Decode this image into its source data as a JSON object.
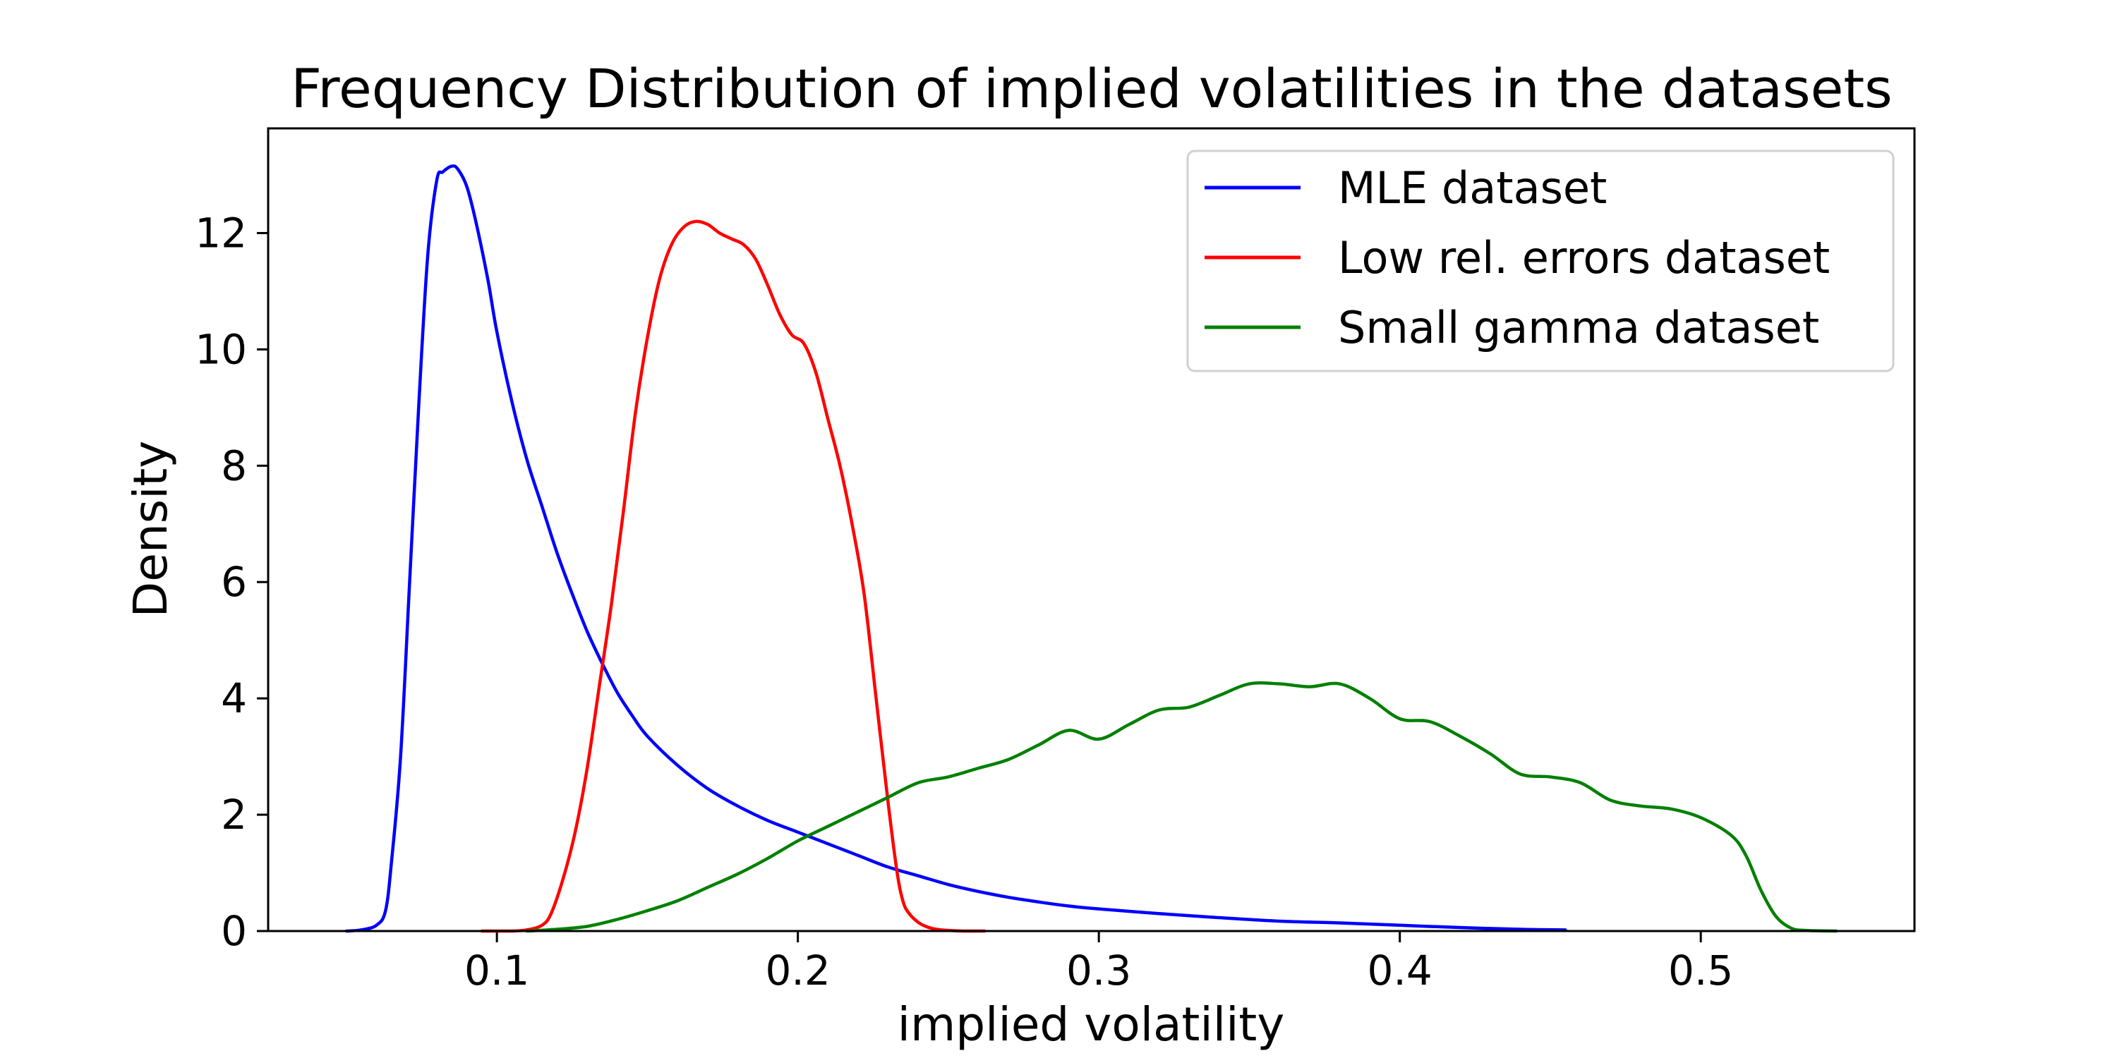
{
  "chart_data": {
    "type": "line",
    "title": "Frequency Distribution of implied volatilities in the datasets",
    "xlabel": "implied volatility",
    "ylabel": "Density",
    "xlim": [
      0.024,
      0.571
    ],
    "ylim": [
      0,
      13.8
    ],
    "xticks": [
      {
        "value": 0.1,
        "label": "0.1"
      },
      {
        "value": 0.2,
        "label": "0.2"
      },
      {
        "value": 0.3,
        "label": "0.3"
      },
      {
        "value": 0.4,
        "label": "0.4"
      },
      {
        "value": 0.5,
        "label": "0.5"
      }
    ],
    "yticks": [
      {
        "value": 0,
        "label": "0"
      },
      {
        "value": 2,
        "label": "2"
      },
      {
        "value": 4,
        "label": "4"
      },
      {
        "value": 6,
        "label": "6"
      },
      {
        "value": 8,
        "label": "8"
      },
      {
        "value": 10,
        "label": "10"
      },
      {
        "value": 12,
        "label": "12"
      }
    ],
    "grid": false,
    "legend_position": "top-right",
    "series": [
      {
        "name": "MLE dataset",
        "color": "#0000ff",
        "x": [
          0.05,
          0.055,
          0.06,
          0.063,
          0.065,
          0.068,
          0.071,
          0.074,
          0.077,
          0.08,
          0.082,
          0.085,
          0.087,
          0.09,
          0.093,
          0.097,
          0.1,
          0.105,
          0.11,
          0.115,
          0.12,
          0.125,
          0.13,
          0.135,
          0.14,
          0.145,
          0.15,
          0.16,
          0.17,
          0.18,
          0.19,
          0.2,
          0.21,
          0.22,
          0.23,
          0.24,
          0.25,
          0.26,
          0.27,
          0.28,
          0.29,
          0.3,
          0.32,
          0.34,
          0.36,
          0.38,
          0.4,
          0.42,
          0.44,
          0.455
        ],
        "y": [
          0.0,
          0.02,
          0.1,
          0.35,
          1.2,
          3.0,
          6.0,
          9.0,
          11.6,
          12.9,
          13.05,
          13.15,
          13.1,
          12.8,
          12.2,
          11.2,
          10.3,
          9.1,
          8.1,
          7.3,
          6.5,
          5.8,
          5.15,
          4.6,
          4.1,
          3.7,
          3.35,
          2.85,
          2.45,
          2.15,
          1.9,
          1.7,
          1.5,
          1.3,
          1.1,
          0.95,
          0.8,
          0.68,
          0.58,
          0.5,
          0.43,
          0.38,
          0.3,
          0.23,
          0.17,
          0.14,
          0.1,
          0.06,
          0.03,
          0.02
        ]
      },
      {
        "name": "Low rel. errors dataset",
        "color": "#ff0000",
        "x": [
          0.095,
          0.105,
          0.11,
          0.115,
          0.118,
          0.122,
          0.126,
          0.13,
          0.134,
          0.138,
          0.142,
          0.146,
          0.15,
          0.154,
          0.158,
          0.162,
          0.166,
          0.17,
          0.174,
          0.178,
          0.182,
          0.186,
          0.19,
          0.194,
          0.198,
          0.202,
          0.206,
          0.21,
          0.214,
          0.218,
          0.222,
          0.226,
          0.23,
          0.233,
          0.235,
          0.237,
          0.24,
          0.243,
          0.246,
          0.25,
          0.255,
          0.262
        ],
        "y": [
          0.0,
          0.0,
          0.02,
          0.1,
          0.3,
          0.9,
          1.7,
          2.8,
          4.2,
          5.6,
          7.2,
          8.9,
          10.2,
          11.2,
          11.8,
          12.1,
          12.2,
          12.15,
          12.0,
          11.9,
          11.8,
          11.55,
          11.1,
          10.6,
          10.25,
          10.1,
          9.6,
          8.8,
          8.0,
          7.0,
          5.8,
          4.0,
          2.2,
          1.0,
          0.5,
          0.3,
          0.15,
          0.07,
          0.03,
          0.01,
          0.0,
          0.0
        ],
        "x_fix": []
      },
      {
        "name": "Small gamma dataset",
        "color": "#008000",
        "x": [
          0.11,
          0.12,
          0.13,
          0.14,
          0.15,
          0.16,
          0.17,
          0.18,
          0.19,
          0.2,
          0.21,
          0.22,
          0.23,
          0.24,
          0.25,
          0.26,
          0.27,
          0.28,
          0.29,
          0.3,
          0.31,
          0.32,
          0.33,
          0.34,
          0.35,
          0.36,
          0.37,
          0.38,
          0.39,
          0.4,
          0.41,
          0.42,
          0.43,
          0.44,
          0.45,
          0.46,
          0.47,
          0.48,
          0.49,
          0.5,
          0.51,
          0.515,
          0.52,
          0.525,
          0.53,
          0.535,
          0.545
        ],
        "y": [
          0.0,
          0.03,
          0.08,
          0.2,
          0.35,
          0.52,
          0.75,
          0.98,
          1.25,
          1.55,
          1.8,
          2.05,
          2.3,
          2.55,
          2.65,
          2.8,
          2.95,
          3.2,
          3.45,
          3.3,
          3.55,
          3.8,
          3.85,
          4.05,
          4.25,
          4.25,
          4.2,
          4.25,
          4.0,
          3.65,
          3.6,
          3.35,
          3.05,
          2.7,
          2.65,
          2.55,
          2.25,
          2.15,
          2.1,
          1.95,
          1.65,
          1.3,
          0.7,
          0.25,
          0.05,
          0.01,
          0.0
        ]
      }
    ]
  }
}
